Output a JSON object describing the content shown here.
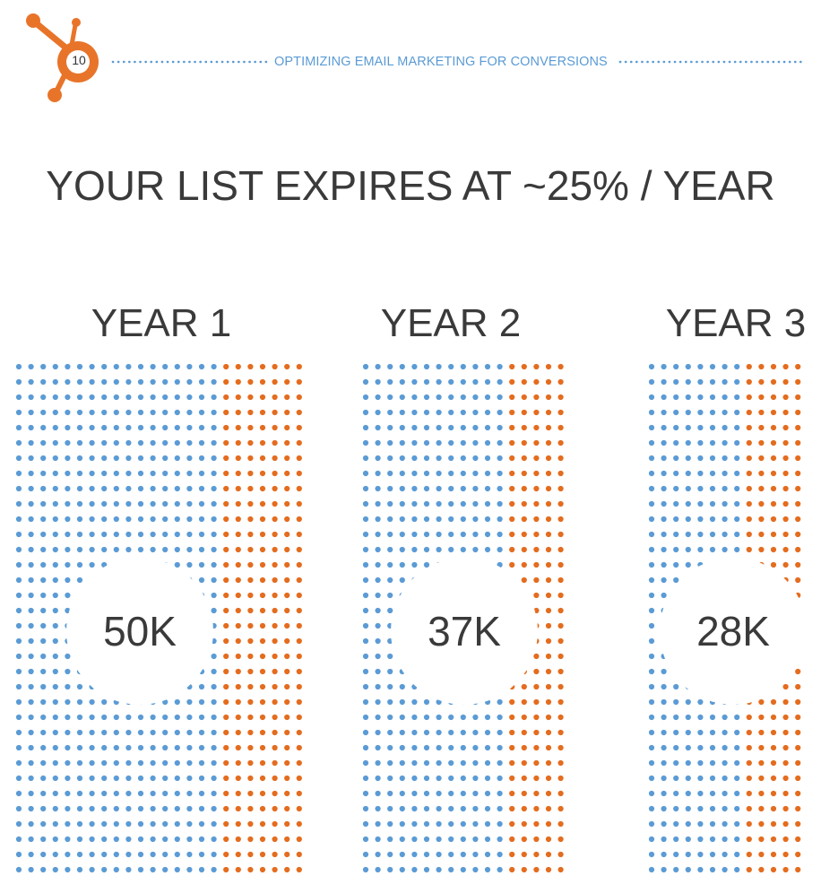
{
  "header": {
    "page_number": "10",
    "title": "OPTIMIZING EMAIL MARKETING FOR CONVERSIONS"
  },
  "headline": "YOUR LIST EXPIRES AT ~25% / YEAR",
  "colors": {
    "active_dot": "#5b9bd5",
    "expired_dot": "#e46c1e",
    "logo": "#e8742a"
  },
  "years": [
    {
      "label": "YEAR 1",
      "count_label": "50K",
      "blue_cols": 17,
      "orange_cols": 7
    },
    {
      "label": "YEAR 2",
      "count_label": "37K",
      "blue_cols": 12,
      "orange_cols": 5
    },
    {
      "label": "YEAR 3",
      "count_label": "28K",
      "blue_cols": 8,
      "orange_cols": 5
    }
  ]
}
